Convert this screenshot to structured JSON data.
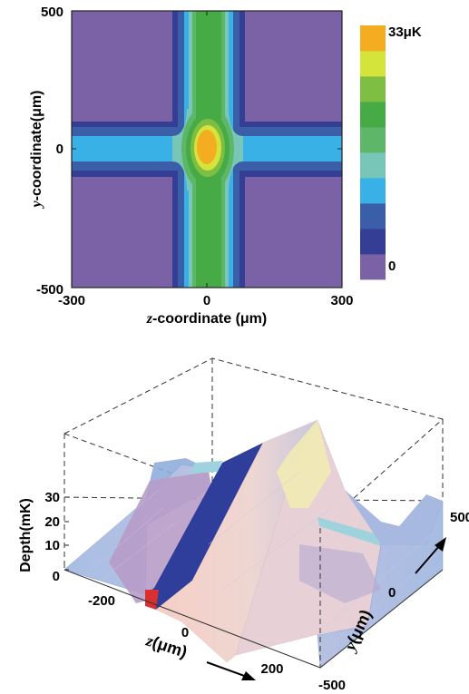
{
  "chart_data": [
    {
      "type": "heatmap",
      "title": "",
      "xlabel_var": "z",
      "xlabel_rest": "-coordinate (μm)",
      "ylabel_var": "y",
      "ylabel_rest": "-coordinate(μm)",
      "xlim": [
        -300,
        300
      ],
      "ylim": [
        -500,
        500
      ],
      "x_ticks": [
        "-300",
        "0",
        "300"
      ],
      "y_ticks": [
        "500",
        "0",
        "-500"
      ],
      "colorbar": {
        "max_label": "33μK",
        "min_label": "0",
        "levels": [
          "#7B62A6",
          "#343E94",
          "#3A5FA8",
          "#39B1E6",
          "#77C6B7",
          "#5EB769",
          "#46AB45",
          "#7DBE43",
          "#D5E43A",
          "#F4AC21"
        ]
      }
    },
    {
      "type": "surface",
      "title": "",
      "zlabel": "Depth(mK)",
      "xlabel_var": "z",
      "xlabel_rest": "(μm)",
      "ylabel_var": "y",
      "ylabel_rest": "(μm)",
      "z_ticks": [
        "30",
        "20",
        "10",
        "0"
      ],
      "x_ticks": [
        "-200",
        "0",
        "200"
      ],
      "y_ticks": [
        "500",
        "0",
        "-500"
      ]
    }
  ]
}
